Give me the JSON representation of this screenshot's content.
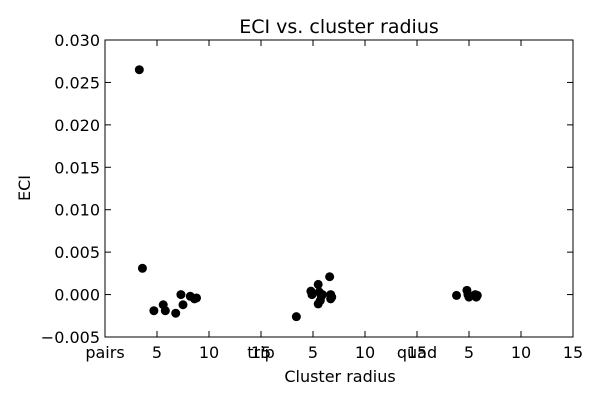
{
  "chart_data": {
    "type": "scatter",
    "title": "ECI vs. cluster radius",
    "xlabel": "Cluster radius",
    "ylabel": "ECI",
    "ylim": [
      -0.005,
      0.03
    ],
    "xlim": [
      0,
      15
    ],
    "yticks": [
      "−0.005",
      "0.000",
      "0.005",
      "0.010",
      "0.015",
      "0.020",
      "0.025",
      "0.030"
    ],
    "ytick_values": [
      -0.005,
      0.0,
      0.005,
      0.01,
      0.015,
      0.02,
      0.025,
      0.03
    ],
    "panels": [
      {
        "name": "pairs",
        "xticks": [
          "pairs",
          "5",
          "10",
          "15"
        ],
        "xtick_values": [
          0,
          5,
          10,
          15
        ],
        "points": [
          {
            "x": 3.3,
            "y": 0.0265
          },
          {
            "x": 3.6,
            "y": 0.0031
          },
          {
            "x": 4.7,
            "y": -0.0019
          },
          {
            "x": 5.6,
            "y": -0.0012
          },
          {
            "x": 5.8,
            "y": -0.0019
          },
          {
            "x": 6.8,
            "y": -0.0022
          },
          {
            "x": 7.3,
            "y": 0.0
          },
          {
            "x": 7.5,
            "y": -0.0012
          },
          {
            "x": 8.2,
            "y": -0.0002
          },
          {
            "x": 8.6,
            "y": -0.0005
          },
          {
            "x": 8.8,
            "y": -0.0004
          }
        ]
      },
      {
        "name": "trip",
        "xticks": [
          "trip",
          "5",
          "10",
          "15"
        ],
        "xtick_values": [
          0,
          5,
          10,
          15
        ],
        "points": [
          {
            "x": 3.4,
            "y": -0.0026
          },
          {
            "x": 4.8,
            "y": 0.0004
          },
          {
            "x": 4.9,
            "y": 0.0
          },
          {
            "x": 5.5,
            "y": 0.0012
          },
          {
            "x": 5.5,
            "y": -0.0011
          },
          {
            "x": 5.6,
            "y": 0.0003
          },
          {
            "x": 5.7,
            "y": -0.0007
          },
          {
            "x": 5.8,
            "y": -0.0002
          },
          {
            "x": 5.9,
            "y": 0.0
          },
          {
            "x": 6.6,
            "y": 0.0021
          },
          {
            "x": 6.7,
            "y": 0.0
          },
          {
            "x": 6.7,
            "y": -0.0005
          },
          {
            "x": 6.8,
            "y": -0.0003
          }
        ]
      },
      {
        "name": "quad",
        "xticks": [
          "quad",
          "5",
          "10",
          "15"
        ],
        "xtick_values": [
          0,
          5,
          10,
          15
        ],
        "points": [
          {
            "x": 3.8,
            "y": -0.0001
          },
          {
            "x": 4.8,
            "y": 0.0005
          },
          {
            "x": 4.9,
            "y": 0.0
          },
          {
            "x": 5.0,
            "y": -0.0003
          },
          {
            "x": 5.6,
            "y": 0.0
          },
          {
            "x": 5.7,
            "y": -0.0003
          },
          {
            "x": 5.8,
            "y": -0.0001
          }
        ]
      }
    ]
  }
}
